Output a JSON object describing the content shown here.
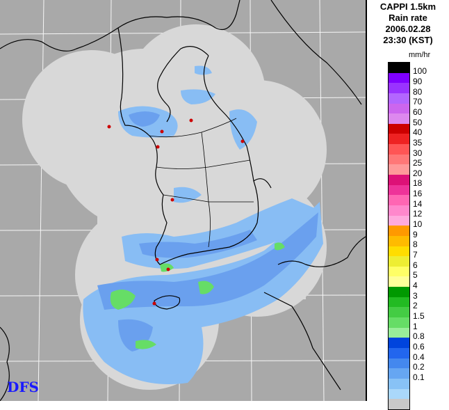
{
  "header": {
    "line1": "CAPPI 1.5km",
    "line2": "Rain rate",
    "line3": "2006.02.28",
    "line4": "23:30 (KST)"
  },
  "legend": {
    "unit": "mm/hr",
    "levels": [
      {
        "label": "100",
        "color": "#000000"
      },
      {
        "label": "90",
        "color": "#7f00ff"
      },
      {
        "label": "80",
        "color": "#9933ff"
      },
      {
        "label": "70",
        "color": "#b366ff"
      },
      {
        "label": "60",
        "color": "#cc66ee"
      },
      {
        "label": "50",
        "color": "#dd88ee"
      },
      {
        "label": "40",
        "color": "#cc0000"
      },
      {
        "label": "35",
        "color": "#ee2222"
      },
      {
        "label": "30",
        "color": "#ff5555"
      },
      {
        "label": "25",
        "color": "#ff7777"
      },
      {
        "label": "20",
        "color": "#ff9999"
      },
      {
        "label": "18",
        "color": "#dd1177"
      },
      {
        "label": "16",
        "color": "#ee3399"
      },
      {
        "label": "14",
        "color": "#ff66b3"
      },
      {
        "label": "12",
        "color": "#ff88cc"
      },
      {
        "label": "10",
        "color": "#ffaadd"
      },
      {
        "label": "9",
        "color": "#ff9900"
      },
      {
        "label": "8",
        "color": "#ffbb00"
      },
      {
        "label": "7",
        "color": "#ffdd00"
      },
      {
        "label": "6",
        "color": "#eeee33"
      },
      {
        "label": "5",
        "color": "#ffff66"
      },
      {
        "label": "4",
        "color": "#ffff99"
      },
      {
        "label": "3",
        "color": "#009900"
      },
      {
        "label": "2",
        "color": "#22bb22"
      },
      {
        "label": "1.5",
        "color": "#44cc44"
      },
      {
        "label": "1",
        "color": "#66dd66"
      },
      {
        "label": "0.8",
        "color": "#99ee99"
      },
      {
        "label": "0.6",
        "color": "#0044dd"
      },
      {
        "label": "0.4",
        "color": "#2266ee"
      },
      {
        "label": "0.2",
        "color": "#4488ee"
      },
      {
        "label": "0.1",
        "color": "#66a6f2"
      },
      {
        "label": "",
        "color": "#88c2f6"
      },
      {
        "label": "",
        "color": "#aad8fa"
      },
      {
        "label": "",
        "color": "#c8c8c8"
      }
    ]
  },
  "colors": {
    "background": "#a9a9a9",
    "coverage": "#d8d8d8",
    "rain_light": "#6aa0ee",
    "rain_mid": "#88bdf4",
    "rain_green": "#66dd66",
    "coastline": "#000000",
    "station": "#cc0000"
  },
  "logo": "DFS"
}
